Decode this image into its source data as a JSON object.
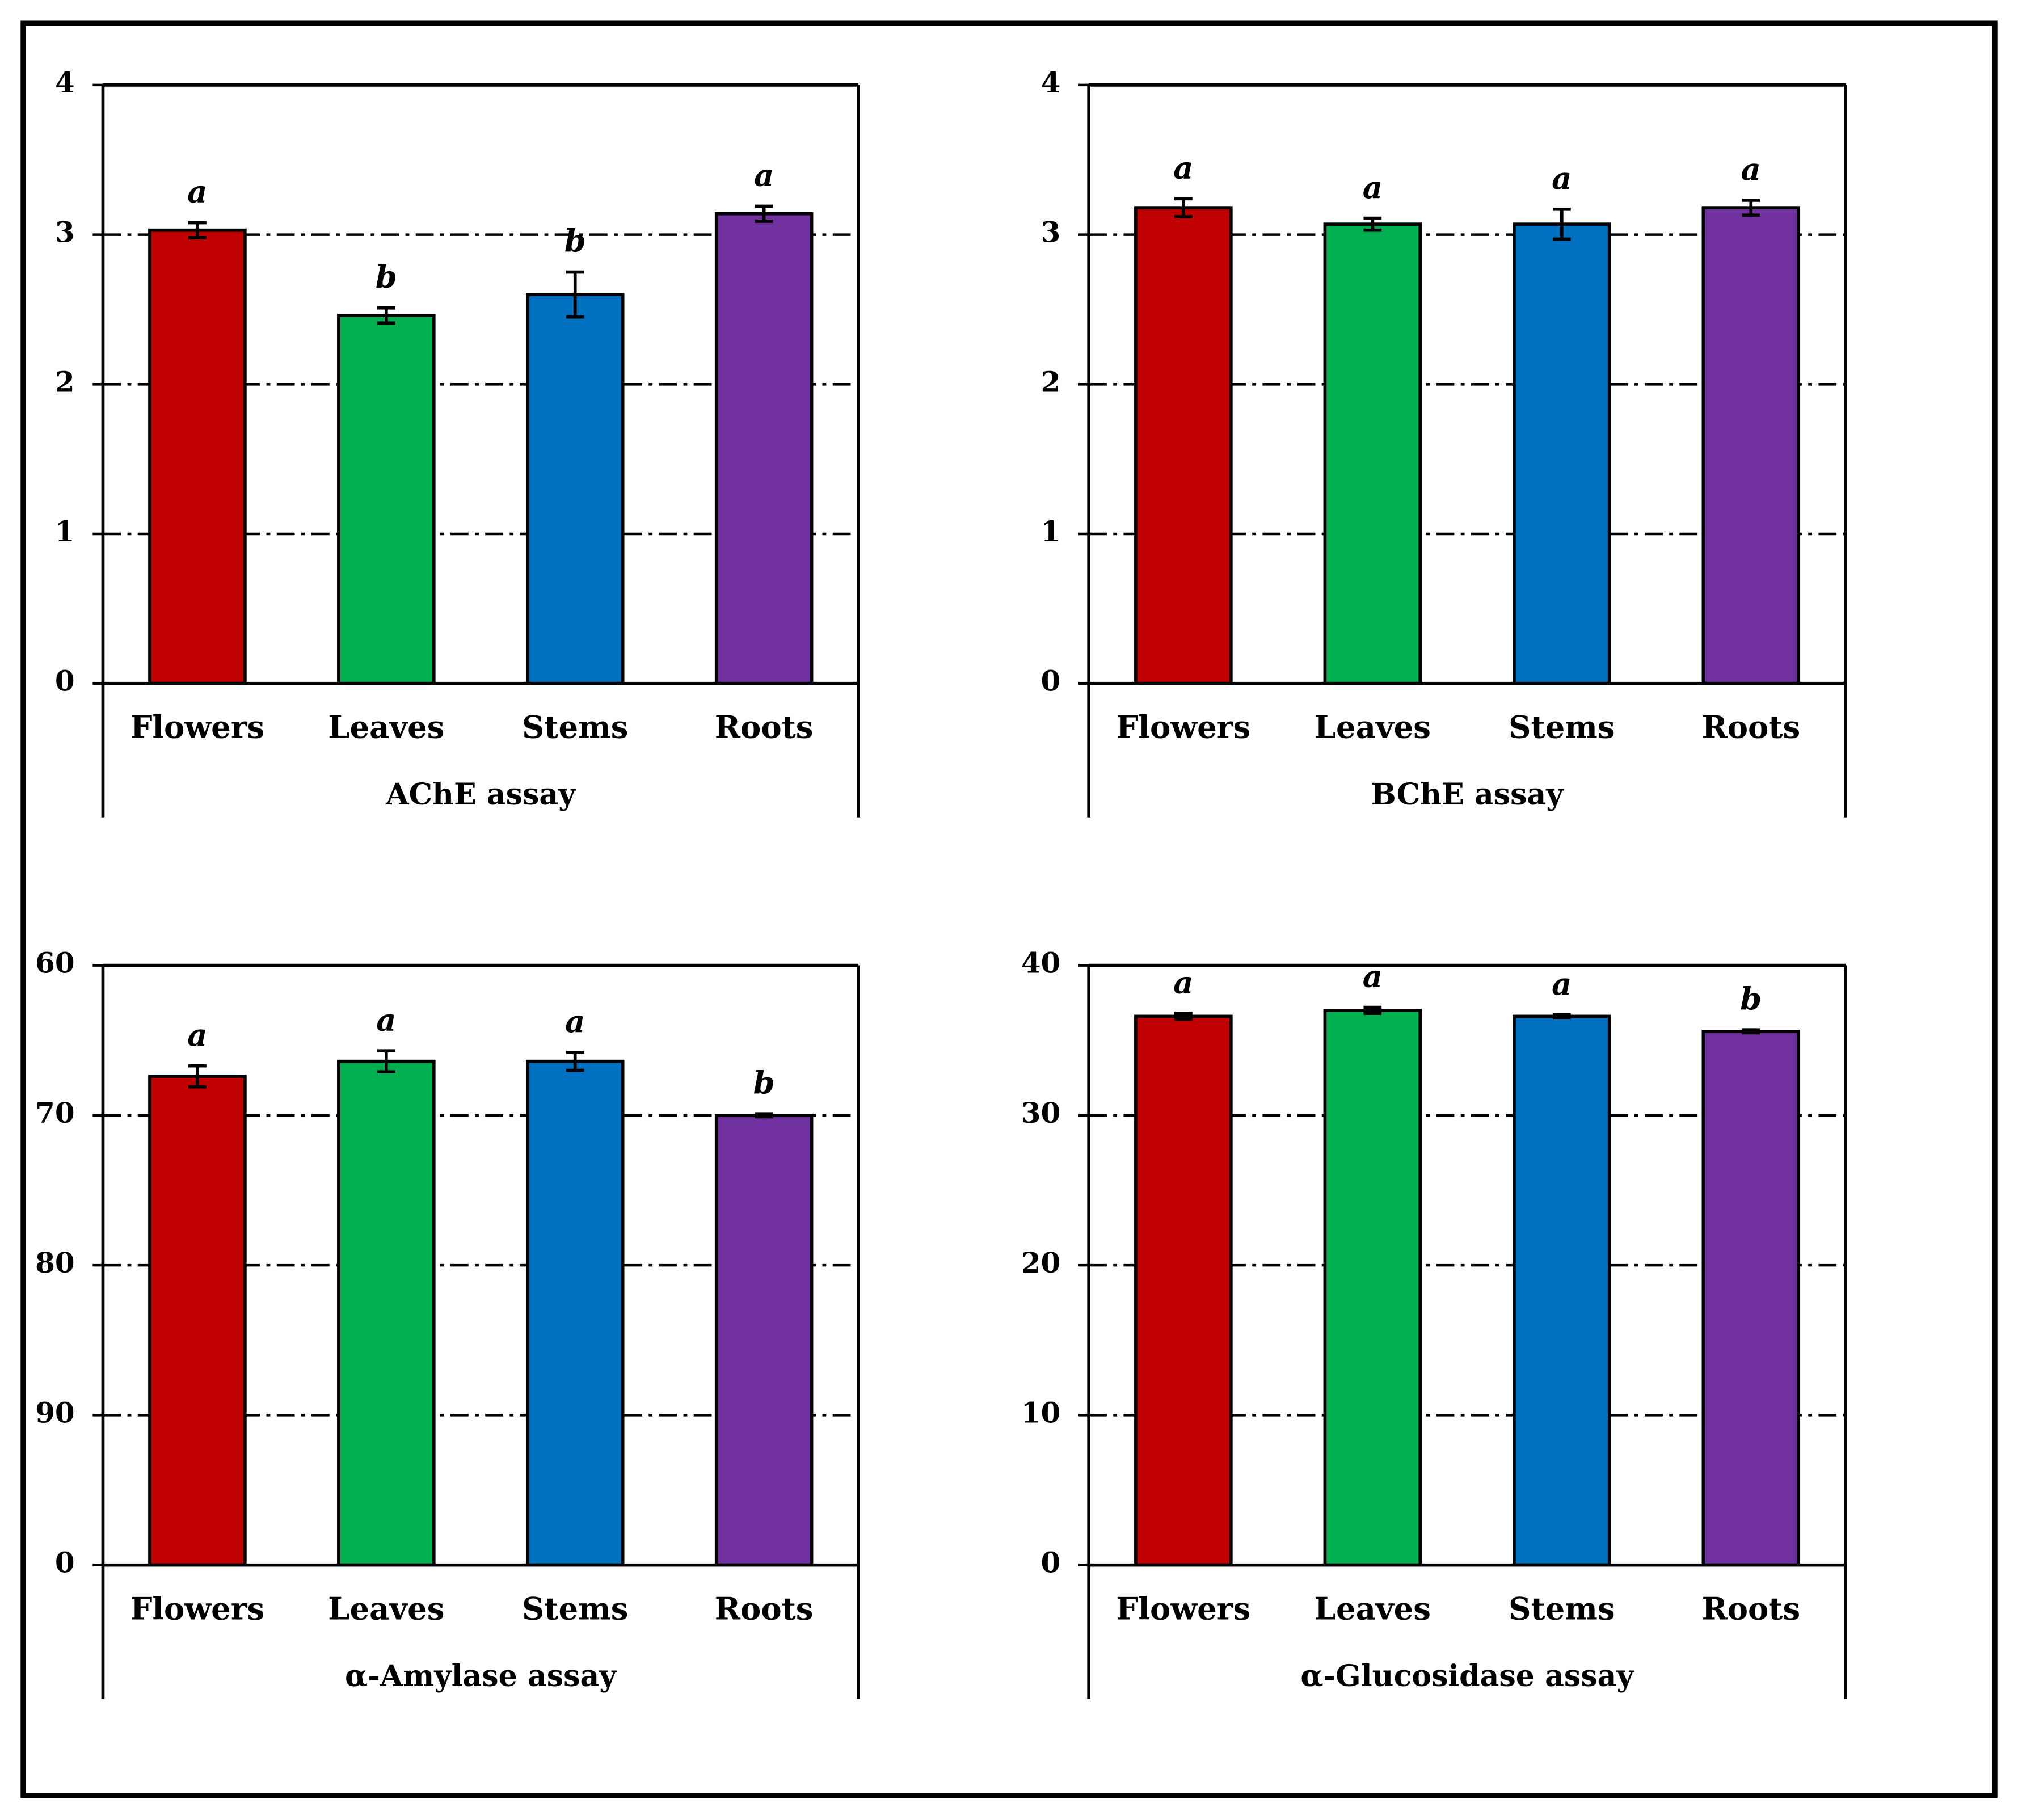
{
  "chart_data": [
    {
      "type": "bar",
      "xlabel": "AChE assay",
      "categories": [
        "Flowers",
        "Leaves",
        "Stems",
        "Roots"
      ],
      "values": [
        3.03,
        2.46,
        2.6,
        3.14
      ],
      "errors": [
        0.05,
        0.05,
        0.15,
        0.05
      ],
      "letters": [
        "a",
        "b",
        "b",
        "a"
      ],
      "colors": [
        "#c00000",
        "#00b050",
        "#0070c0",
        "#7030a0"
      ],
      "ylim": [
        0,
        4
      ],
      "yticks": [
        0,
        1,
        2,
        3,
        4
      ],
      "grid": true
    },
    {
      "type": "bar",
      "xlabel": "BChE assay",
      "categories": [
        "Flowers",
        "Leaves",
        "Stems",
        "Roots"
      ],
      "values": [
        3.18,
        3.07,
        3.07,
        3.18
      ],
      "errors": [
        0.06,
        0.04,
        0.1,
        0.05
      ],
      "letters": [
        "a",
        "a",
        "a",
        "a"
      ],
      "colors": [
        "#c00000",
        "#00b050",
        "#0070c0",
        "#7030a0"
      ],
      "ylim": [
        0,
        4
      ],
      "yticks": [
        0,
        1,
        2,
        3,
        4
      ],
      "grid": true
    },
    {
      "type": "bar",
      "xlabel": "α-Amylase assay",
      "categories": [
        "Flowers",
        "Leaves",
        "Stems",
        "Roots"
      ],
      "values": [
        67.4,
        66.4,
        66.4,
        70.0
      ],
      "errors": [
        0.7,
        0.7,
        0.6,
        0.1
      ],
      "letters": [
        "a",
        "a",
        "a",
        "b"
      ],
      "colors": [
        "#c00000",
        "#00b050",
        "#0070c0",
        "#7030a0"
      ],
      "ylim": [
        100,
        60
      ],
      "yticks": [
        {
          "value": 100,
          "label": "0"
        },
        90,
        80,
        70,
        60
      ],
      "grid": true
    },
    {
      "type": "bar",
      "xlabel": "α-Glucosidase assay",
      "categories": [
        "Flowers",
        "Leaves",
        "Stems",
        "Roots"
      ],
      "values": [
        36.6,
        37.0,
        36.6,
        35.6
      ],
      "errors": [
        0.2,
        0.2,
        0.1,
        0.1
      ],
      "letters": [
        "a",
        "a",
        "a",
        "b"
      ],
      "colors": [
        "#c00000",
        "#00b050",
        "#0070c0",
        "#7030a0"
      ],
      "ylim": [
        0,
        40
      ],
      "yticks": [
        0,
        10,
        20,
        30,
        40
      ],
      "grid": true
    }
  ]
}
